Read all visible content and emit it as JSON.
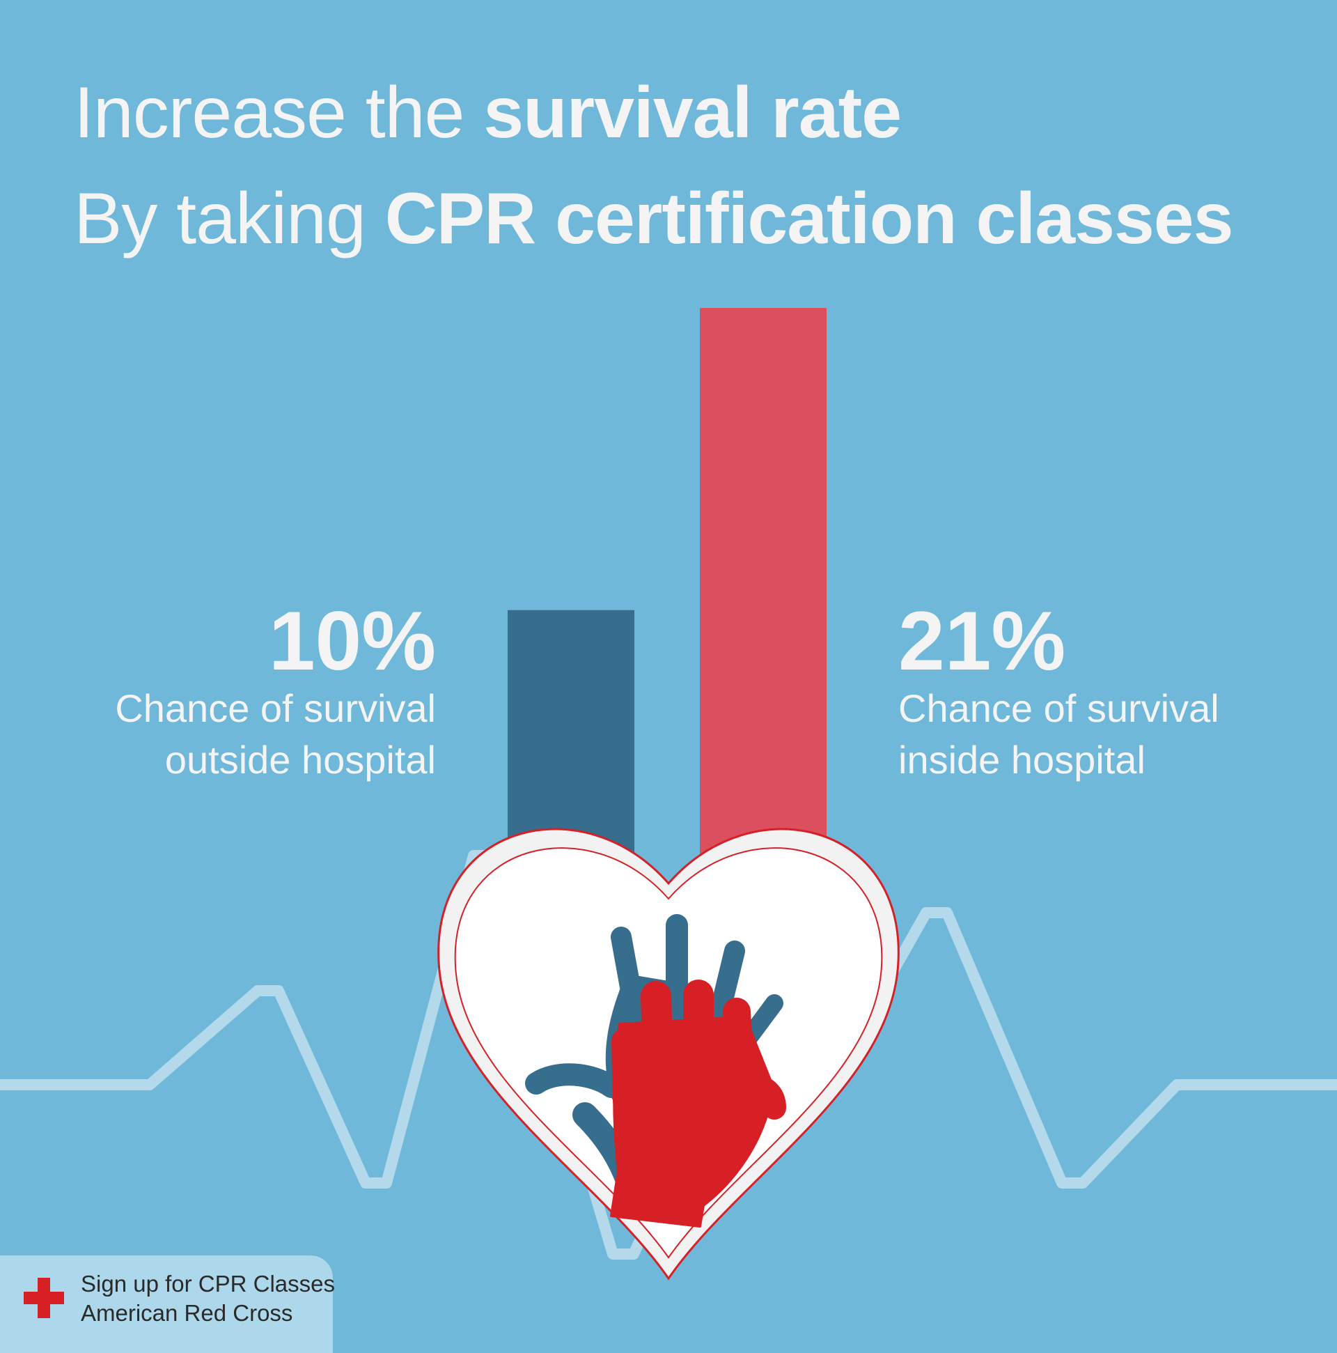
{
  "headline": {
    "line1_light": "Increase the ",
    "line1_bold": "survival rate",
    "line2_light": "By taking ",
    "line2_bold": "CPR certification classes"
  },
  "chart_data": {
    "type": "bar",
    "categories": [
      "outside hospital",
      "inside hospital"
    ],
    "values": [
      10,
      21
    ],
    "value_labels": [
      "10%",
      "21%"
    ],
    "descriptions": [
      [
        "Chance of survival",
        "outside hospital"
      ],
      [
        "Chance of survival",
        "inside hospital"
      ]
    ],
    "colors": [
      "#376d8d",
      "#db4f5e"
    ],
    "ylim": [
      0,
      21
    ],
    "grid": false
  },
  "stats": {
    "left": {
      "pct": "10%",
      "desc1": "Chance of survival",
      "desc2": "outside hospital"
    },
    "right": {
      "pct": "21%",
      "desc1": "Chance of survival",
      "desc2": "inside hospital"
    }
  },
  "icons": {
    "heart": "heart-icon",
    "hands": "cpr-hands-icon",
    "ecg": "heartbeat-line",
    "cross": "red-cross-icon"
  },
  "colors": {
    "background": "#6fb8d9",
    "ecg_line": "#b3d9ea",
    "blue_hand": "#376d8d",
    "red_hand": "#d62026",
    "heart_outline": "#d62026"
  },
  "footer": {
    "line1": "Sign up for CPR Classes",
    "line2": "American Red Cross"
  }
}
